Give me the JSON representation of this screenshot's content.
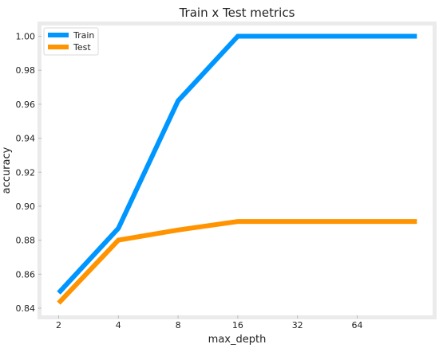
{
  "chart_data": {
    "type": "line",
    "title": "Train x Test metrics",
    "xlabel": "max_depth",
    "ylabel": "accuracy",
    "categories": [
      "2",
      "4",
      "8",
      "16",
      "32",
      "64",
      "None"
    ],
    "x_tick_labels": [
      "2",
      "4",
      "8",
      "16",
      "32",
      "64"
    ],
    "ylim": [
      0.835,
      1.005
    ],
    "yticks": [
      0.84,
      0.86,
      0.88,
      0.9,
      0.92,
      0.94,
      0.96,
      0.98,
      1.0
    ],
    "ytick_labels": [
      "0.84",
      "0.86",
      "0.88",
      "0.90",
      "0.92",
      "0.94",
      "0.96",
      "0.98",
      "1.00"
    ],
    "grid": false,
    "legend_position": "top-left",
    "series": [
      {
        "name": "Train",
        "color": "#0096ff",
        "values": [
          0.849,
          0.887,
          0.962,
          1.0,
          1.0,
          1.0,
          1.0
        ]
      },
      {
        "name": "Test",
        "color": "#ff9300",
        "values": [
          0.843,
          0.88,
          0.886,
          0.891,
          0.891,
          0.891,
          0.891
        ]
      }
    ]
  }
}
